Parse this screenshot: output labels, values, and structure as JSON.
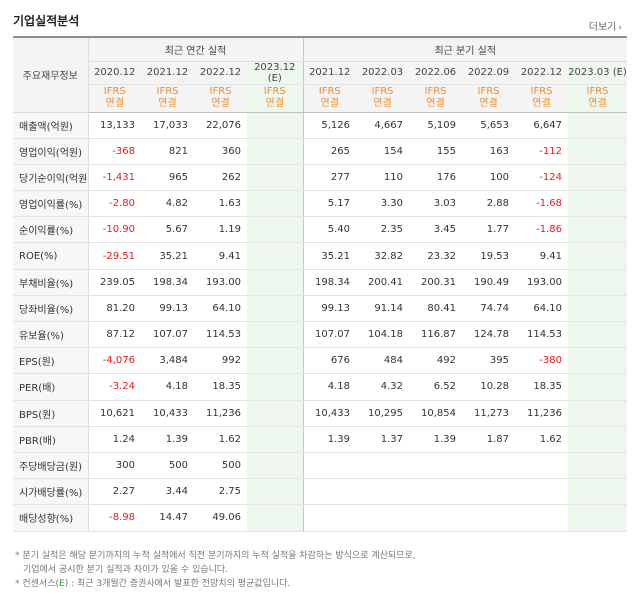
{
  "header": {
    "title": "기업실적분석",
    "more_label": "더보기"
  },
  "table": {
    "corner_label": "주요재무정보",
    "group_annual": "최근 연간 실적",
    "group_quarter": "최근 분기 실적",
    "annual_periods": [
      {
        "period": "2020.12",
        "std1": "IFRS",
        "std2": "연결"
      },
      {
        "period": "2021.12",
        "std1": "IFRS",
        "std2": "연결"
      },
      {
        "period": "2022.12",
        "std1": "IFRS",
        "std2": "연결"
      },
      {
        "period": "2023.12\n(E)",
        "std1": "IFRS",
        "std2": "연결"
      }
    ],
    "quarter_periods": [
      {
        "period": "2021.12",
        "std1": "IFRS",
        "std2": "연결"
      },
      {
        "period": "2022.03",
        "std1": "IFRS",
        "std2": "연결"
      },
      {
        "period": "2022.06",
        "std1": "IFRS",
        "std2": "연결"
      },
      {
        "period": "2022.09",
        "std1": "IFRS",
        "std2": "연결"
      },
      {
        "period": "2022.12",
        "std1": "IFRS",
        "std2": "연결"
      },
      {
        "period": "2023.03 (E)",
        "std1": "IFRS",
        "std2": "연결"
      }
    ],
    "rows": [
      {
        "label": "매출액(억원)",
        "values": [
          "13,133",
          "17,033",
          "22,076",
          "",
          "5,126",
          "4,667",
          "5,109",
          "5,653",
          "6,647",
          ""
        ]
      },
      {
        "label": "영업이익(억원)",
        "values": [
          "-368",
          "821",
          "360",
          "",
          "265",
          "154",
          "155",
          "163",
          "-112",
          ""
        ]
      },
      {
        "label": "당기순이익(억원)",
        "values": [
          "-1,431",
          "965",
          "262",
          "",
          "277",
          "110",
          "176",
          "100",
          "-124",
          ""
        ]
      },
      {
        "label": "영업이익률(%)",
        "values": [
          "-2.80",
          "4.82",
          "1.63",
          "",
          "5.17",
          "3.30",
          "3.03",
          "2.88",
          "-1.68",
          ""
        ]
      },
      {
        "label": "순이익률(%)",
        "values": [
          "-10.90",
          "5.67",
          "1.19",
          "",
          "5.40",
          "2.35",
          "3.45",
          "1.77",
          "-1.86",
          ""
        ]
      },
      {
        "label": "ROE(%)",
        "values": [
          "-29.51",
          "35.21",
          "9.41",
          "",
          "35.21",
          "32.82",
          "23.32",
          "19.53",
          "9.41",
          ""
        ]
      },
      {
        "label": "부채비율(%)",
        "values": [
          "239.05",
          "198.34",
          "193.00",
          "",
          "198.34",
          "200.41",
          "200.31",
          "190.49",
          "193.00",
          ""
        ]
      },
      {
        "label": "당좌비율(%)",
        "values": [
          "81.20",
          "99.13",
          "64.10",
          "",
          "99.13",
          "91.14",
          "80.41",
          "74.74",
          "64.10",
          ""
        ]
      },
      {
        "label": "유보율(%)",
        "values": [
          "87.12",
          "107.07",
          "114.53",
          "",
          "107.07",
          "104.18",
          "116.87",
          "124.78",
          "114.53",
          ""
        ]
      },
      {
        "label": "EPS(원)",
        "values": [
          "-4,076",
          "3,484",
          "992",
          "",
          "676",
          "484",
          "492",
          "395",
          "-380",
          ""
        ]
      },
      {
        "label": "PER(배)",
        "values": [
          "-3.24",
          "4.18",
          "18.35",
          "",
          "4.18",
          "4.32",
          "6.52",
          "10.28",
          "18.35",
          ""
        ]
      },
      {
        "label": "BPS(원)",
        "values": [
          "10,621",
          "10,433",
          "11,236",
          "",
          "10,433",
          "10,295",
          "10,854",
          "11,273",
          "11,236",
          ""
        ]
      },
      {
        "label": "PBR(배)",
        "values": [
          "1.24",
          "1.39",
          "1.62",
          "",
          "1.39",
          "1.37",
          "1.39",
          "1.87",
          "1.62",
          ""
        ]
      },
      {
        "label": "주당배당금(원)",
        "values": [
          "300",
          "500",
          "500",
          "",
          "",
          "",
          "",
          "",
          "",
          ""
        ]
      },
      {
        "label": "시가배당률(%)",
        "values": [
          "2.27",
          "3.44",
          "2.75",
          "",
          "",
          "",
          "",
          "",
          "",
          ""
        ]
      },
      {
        "label": "배당성향(%)",
        "values": [
          "-8.98",
          "14.47",
          "49.06",
          "",
          "",
          "",
          "",
          "",
          "",
          ""
        ]
      }
    ]
  },
  "notes": {
    "line1": "* 분기 실적은 해당 분기까지의 누적 실적에서 직전 분기까지의 누적 실적을 차감하는 방식으로 계산되므로,",
    "line2": "기업에서 공시한 분기 실적과 차이가 있을 수 있습니다.",
    "line3_prefix": "* 컨센서스(",
    "line3_e": "E",
    "line3_suffix": ") : 최근 3개월간 증권사에서 발표한 전망치의 평균값입니다."
  },
  "colors": {
    "ifrs": "#f38b2c",
    "negative": "#e51a1a",
    "estimate_bg": "#eef7ee",
    "header_bg": "#f4f4f4"
  }
}
